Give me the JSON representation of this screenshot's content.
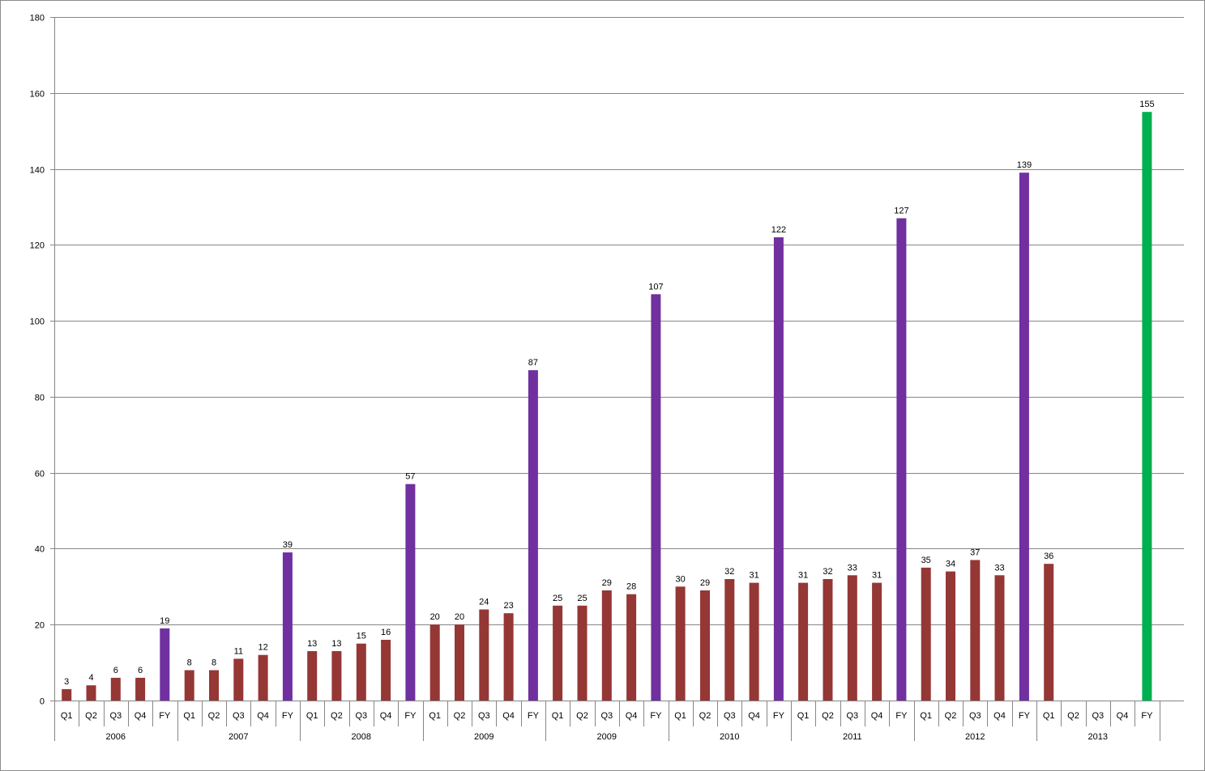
{
  "chart_data": {
    "type": "bar",
    "title": "",
    "xlabel": "",
    "ylabel": "",
    "ylim": [
      0,
      180
    ],
    "y_ticks": [
      "0",
      "20",
      "40",
      "60",
      "80",
      "100",
      "120",
      "140",
      "160",
      "180"
    ],
    "grid": true,
    "legend": "none",
    "colors": {
      "quarter": "#953735",
      "fy": "#7030A0",
      "fy_highlight": "#00B050",
      "gridline": "#868686",
      "axis": "#868686"
    },
    "groups": [
      {
        "label": "2006",
        "categories": [
          "Q1",
          "Q2",
          "Q3",
          "Q4",
          "FY"
        ],
        "values": [
          3,
          4,
          6,
          6,
          19
        ]
      },
      {
        "label": "2007",
        "categories": [
          "Q1",
          "Q2",
          "Q3",
          "Q4",
          "FY"
        ],
        "values": [
          8,
          8,
          11,
          12,
          39
        ]
      },
      {
        "label": "2008",
        "categories": [
          "Q1",
          "Q2",
          "Q3",
          "Q4",
          "FY"
        ],
        "values": [
          13,
          13,
          15,
          16,
          57
        ]
      },
      {
        "label": "2009",
        "categories": [
          "Q1",
          "Q2",
          "Q3",
          "Q4",
          "FY"
        ],
        "values": [
          20,
          20,
          24,
          23,
          87
        ]
      },
      {
        "label": "2009",
        "categories": [
          "Q1",
          "Q2",
          "Q3",
          "Q4",
          "FY"
        ],
        "values": [
          25,
          25,
          29,
          28,
          107
        ]
      },
      {
        "label": "2010",
        "categories": [
          "Q1",
          "Q2",
          "Q3",
          "Q4",
          "FY"
        ],
        "values": [
          30,
          29,
          32,
          31,
          122
        ]
      },
      {
        "label": "2011",
        "categories": [
          "Q1",
          "Q2",
          "Q3",
          "Q4",
          "FY"
        ],
        "values": [
          31,
          32,
          33,
          31,
          127
        ]
      },
      {
        "label": "2012",
        "categories": [
          "Q1",
          "Q2",
          "Q3",
          "Q4",
          "FY"
        ],
        "values": [
          35,
          34,
          37,
          33,
          139
        ]
      },
      {
        "label": "2013",
        "categories": [
          "Q1",
          "Q2",
          "Q3",
          "Q4",
          "FY"
        ],
        "values": [
          36,
          null,
          null,
          null,
          155
        ],
        "fy_highlight": true
      }
    ]
  }
}
